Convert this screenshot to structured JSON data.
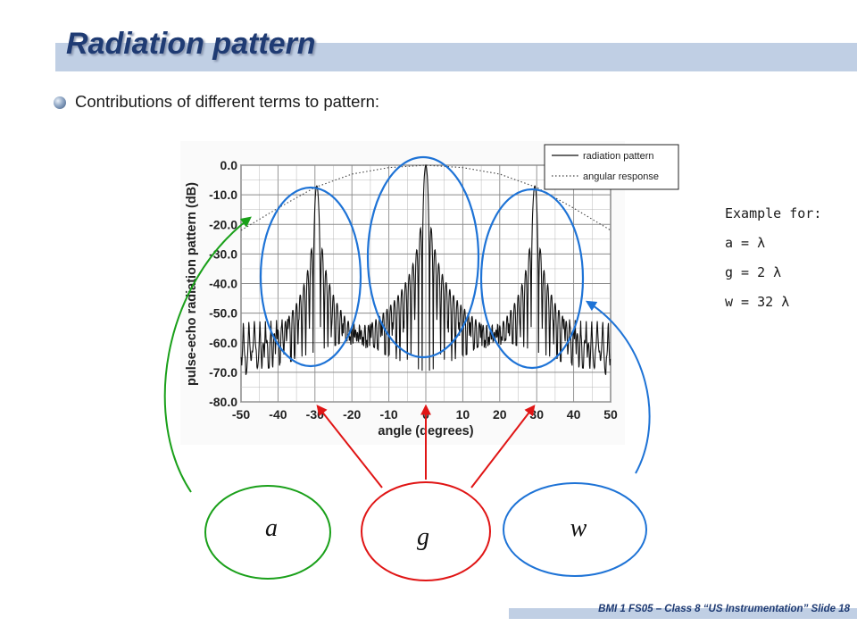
{
  "slide": {
    "title": "Radiation pattern",
    "bullet": "Contributions of different terms to pattern:",
    "footer": "BMI 1 FS05 – Class 8 “US Instrumentation”  Slide 18"
  },
  "notes": {
    "heading": "Example for:",
    "a": "a = λ",
    "g": "g = 2 λ",
    "w": "w = 32 λ"
  },
  "terms": {
    "a": "a",
    "g": "g",
    "w": "w"
  },
  "colors": {
    "title": "#1f3b73",
    "green": "#1aa01a",
    "red": "#e01515",
    "blue": "#1e73d6"
  },
  "chart_data": {
    "type": "line",
    "xlabel": "angle (degrees)",
    "ylabel": "pulse-echo radiation pattern (dB)",
    "xlim": [
      -50,
      50
    ],
    "ylim": [
      -80,
      0
    ],
    "xticks": [
      -50,
      -40,
      -30,
      -20,
      -10,
      0,
      10,
      20,
      30,
      40,
      50
    ],
    "yticks": [
      "0.0",
      "-10.0",
      "-20.0",
      "-30.0",
      "-40.0",
      "-50.0",
      "-60.0",
      "-70.0",
      "-80.0"
    ],
    "grid": true,
    "legend_position": "top-right",
    "series": [
      {
        "name": "radiation pattern",
        "style": "solid",
        "peaks": [
          {
            "x": -29.5,
            "y": -7
          },
          {
            "x": 0,
            "y": 0
          },
          {
            "x": 29.5,
            "y": -7
          }
        ]
      },
      {
        "name": "angular response",
        "style": "dotted",
        "x": [
          -50,
          -40,
          -30,
          -20,
          -10,
          0,
          10,
          20,
          30,
          40,
          50
        ],
        "y": [
          -22,
          -14.5,
          -7.5,
          -3,
          -0.8,
          0,
          -0.8,
          -3,
          -7.5,
          -14.5,
          -22
        ]
      }
    ]
  }
}
